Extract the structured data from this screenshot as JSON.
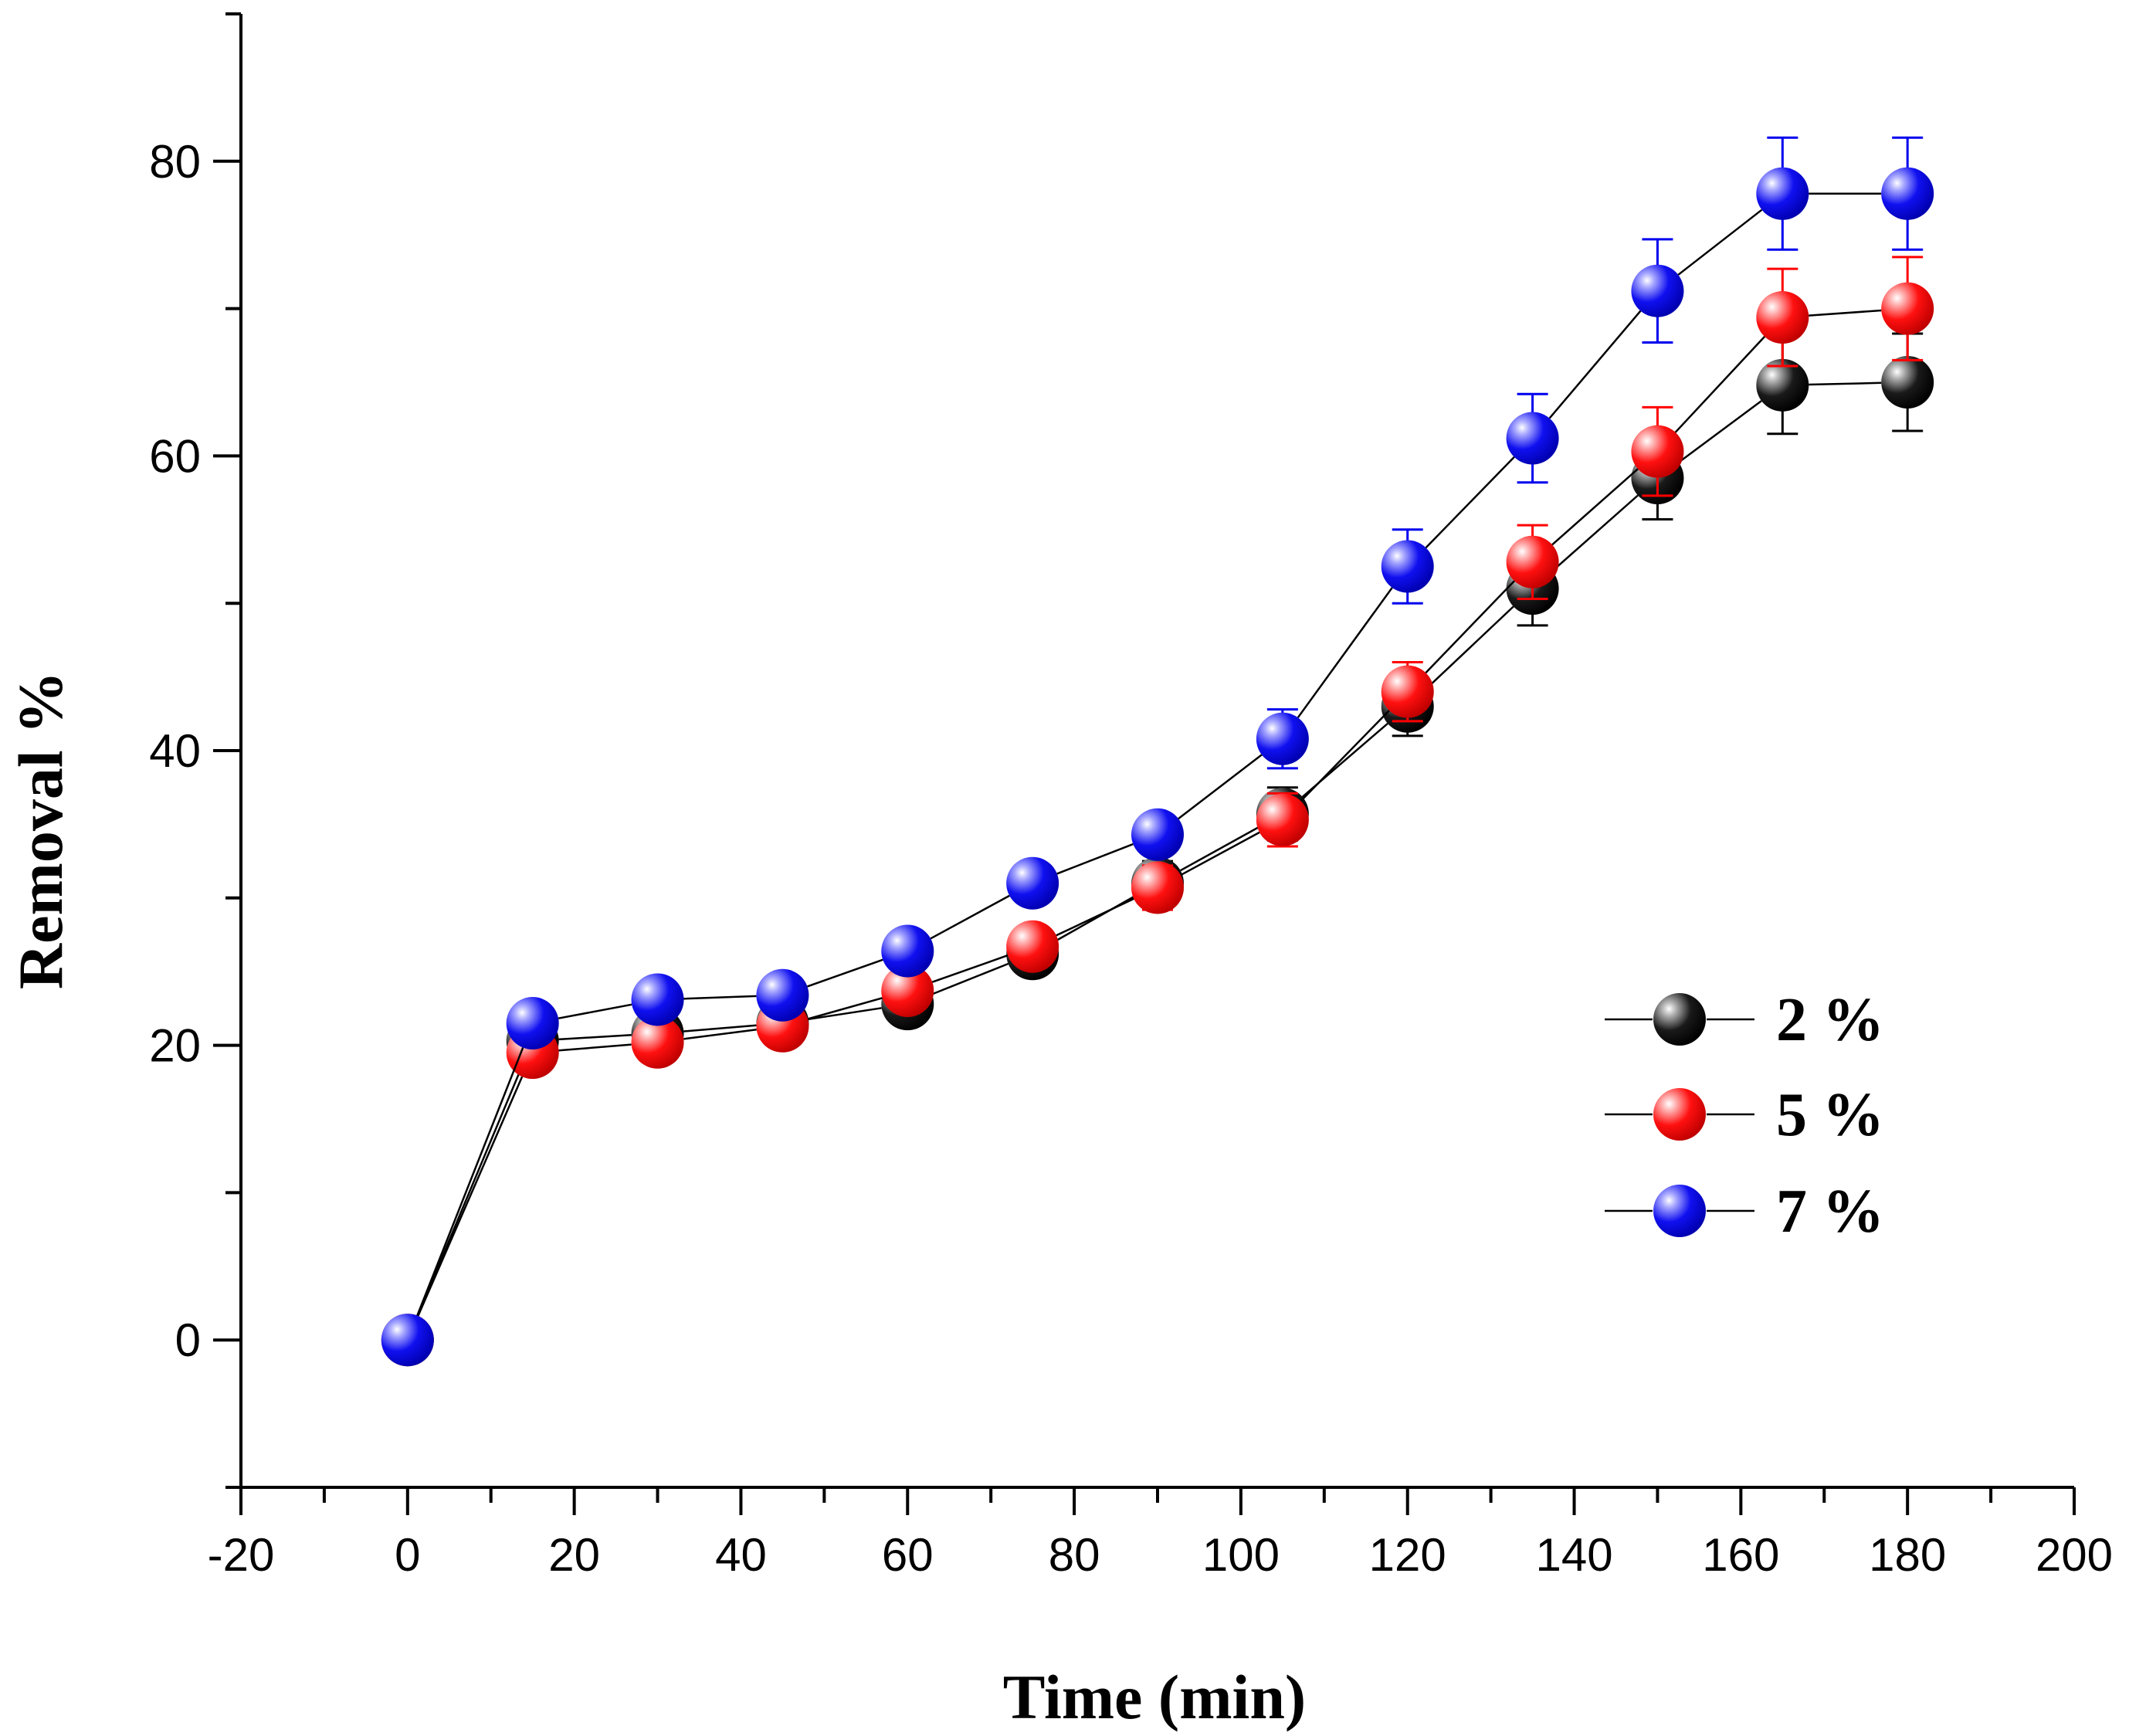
{
  "chart_data": {
    "type": "scatter",
    "title": "",
    "xlabel": "Time (min)",
    "ylabel": "Removal %",
    "xlim": [
      -20,
      200
    ],
    "ylim": [
      -10,
      90
    ],
    "x_major_ticks": [
      -20,
      0,
      20,
      40,
      60,
      80,
      100,
      120,
      140,
      160,
      180,
      200
    ],
    "x_tick_labels": [
      "-20",
      "0",
      "20",
      "40",
      "60",
      "80",
      "100",
      "120",
      "140",
      "160",
      "180",
      "200"
    ],
    "y_major_ticks": [
      0,
      20,
      40,
      60,
      80
    ],
    "y_tick_labels": [
      "0",
      "20",
      "40",
      "60",
      "80"
    ],
    "grid": false,
    "legend_position": "right-middle",
    "x": [
      0,
      15,
      30,
      45,
      60,
      75,
      90,
      105,
      120,
      135,
      150,
      165,
      180
    ],
    "series": [
      {
        "name": "2 %",
        "color": "#000000",
        "values": [
          0,
          20.3,
          20.8,
          21.5,
          22.8,
          26.2,
          31.0,
          35.7,
          43.0,
          51.0,
          58.5,
          64.8,
          65.0
        ],
        "errors": [
          0,
          1.2,
          1.2,
          1.0,
          1.0,
          1.2,
          1.5,
          1.8,
          2.0,
          2.5,
          2.8,
          3.3,
          3.3
        ]
      },
      {
        "name": "5 %",
        "color": "#ff0000",
        "values": [
          0,
          19.5,
          20.2,
          21.3,
          23.7,
          26.7,
          30.7,
          35.3,
          44.0,
          52.8,
          60.3,
          69.4,
          70.0
        ],
        "errors": [
          0,
          1.2,
          1.2,
          1.0,
          1.0,
          1.2,
          1.5,
          1.8,
          2.0,
          2.5,
          3.0,
          3.3,
          3.5
        ]
      },
      {
        "name": "7 %",
        "color": "#0000ee",
        "values": [
          0,
          21.5,
          23.1,
          23.4,
          26.4,
          31.0,
          34.3,
          40.8,
          52.5,
          61.2,
          71.2,
          77.8,
          77.8
        ],
        "errors": [
          0,
          1.2,
          1.2,
          1.0,
          1.2,
          1.2,
          1.3,
          2.0,
          2.5,
          3.0,
          3.5,
          3.8,
          3.8
        ]
      }
    ]
  }
}
